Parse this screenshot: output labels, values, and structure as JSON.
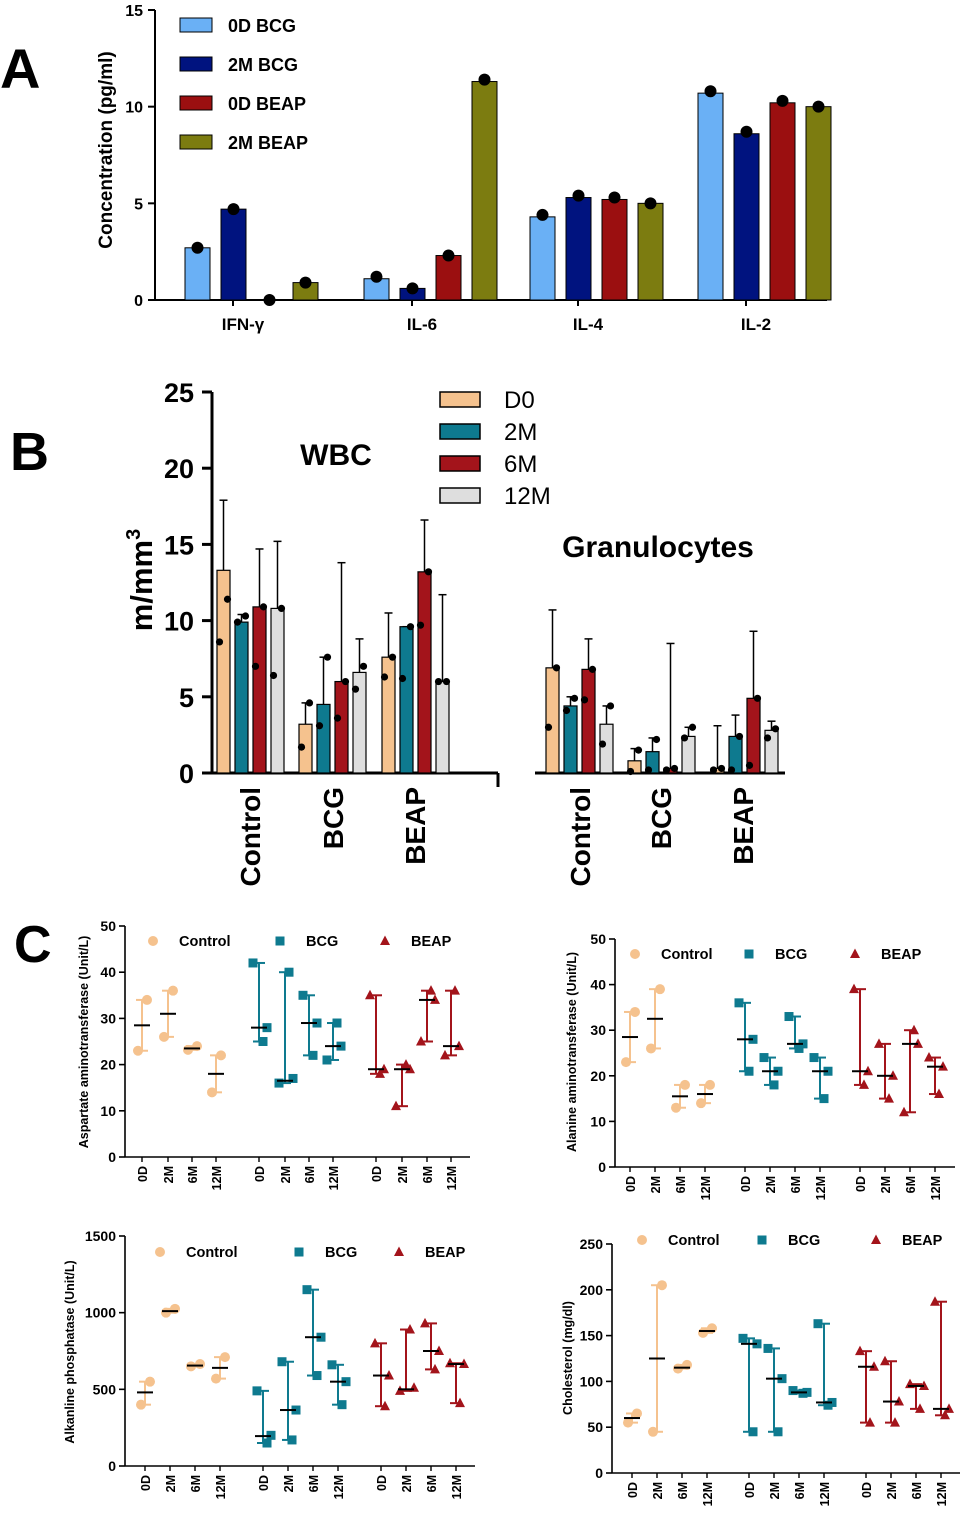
{
  "colors": {
    "a": [
      "#6ab0f5",
      "#00137f",
      "#9b0f10",
      "#7c7c10"
    ],
    "b": [
      "#f5c28e",
      "#0e7a8f",
      "#a3141b",
      "#dedede"
    ],
    "c": {
      "control": "#f5c28e",
      "bcg": "#0e7a8f",
      "beap": "#a3141b"
    }
  },
  "chart_data": [
    {
      "panel": "A",
      "type": "bar",
      "ylabel": "Concentration (pg/ml)",
      "ylim": [
        0,
        15
      ],
      "yticks": [
        "0",
        "5",
        "10",
        "15"
      ],
      "categories": [
        "IFN-γ",
        "IL-6",
        "IL-4",
        "IL-2"
      ],
      "series": [
        {
          "name": "0D BCG",
          "values": [
            2.7,
            1.1,
            4.3,
            10.7
          ],
          "points": [
            2.7,
            1.2,
            4.4,
            10.8
          ]
        },
        {
          "name": "2M BCG",
          "values": [
            4.7,
            0.6,
            5.3,
            8.6
          ],
          "points": [
            4.7,
            0.6,
            5.4,
            8.7
          ]
        },
        {
          "name": "0D BEAP",
          "values": [
            0,
            2.3,
            5.2,
            10.2
          ],
          "points": [
            0,
            2.3,
            5.3,
            10.3
          ]
        },
        {
          "name": "2M BEAP",
          "values": [
            0.9,
            11.3,
            5.0,
            10.0
          ],
          "points": [
            0.9,
            11.4,
            5.0,
            10.0
          ]
        }
      ]
    },
    {
      "panel": "B",
      "type": "bar",
      "ylabel": "m/mm",
      "ylabel_sup": "3",
      "ylim": [
        0,
        25
      ],
      "yticks": [
        "0",
        "5",
        "10",
        "15",
        "20",
        "25"
      ],
      "titles": [
        "WBC",
        "Granulocytes"
      ],
      "legend": [
        "D0",
        "2M",
        "6M",
        "12M"
      ],
      "groups": [
        {
          "name": "Control",
          "bars": [
            {
              "mean": 13.3,
              "upper": 17.9,
              "points": [
                8.6,
                11.4
              ]
            },
            {
              "mean": 9.9,
              "upper": 10.4,
              "points": [
                9.9,
                10.3
              ]
            },
            {
              "mean": 10.9,
              "upper": 14.7,
              "points": [
                7.0,
                10.9
              ]
            },
            {
              "mean": 10.8,
              "upper": 15.2,
              "points": [
                6.4,
                10.8
              ]
            }
          ]
        },
        {
          "name": "BCG",
          "bars": [
            {
              "mean": 3.2,
              "upper": 4.6,
              "points": [
                1.7,
                4.6
              ]
            },
            {
              "mean": 4.5,
              "upper": 7.6,
              "points": [
                3.1,
                7.6
              ]
            },
            {
              "mean": 6.0,
              "upper": 13.8,
              "points": [
                3.6,
                6.0
              ]
            },
            {
              "mean": 6.6,
              "upper": 8.8,
              "points": [
                5.5,
                7.0
              ]
            }
          ]
        },
        {
          "name": "BEAP",
          "bars": [
            {
              "mean": 7.6,
              "upper": 10.5,
              "points": [
                6.3,
                7.6
              ]
            },
            {
              "mean": 9.6,
              "upper": 9.6,
              "points": [
                6.2,
                9.6
              ]
            },
            {
              "mean": 13.2,
              "upper": 16.6,
              "points": [
                9.7,
                13.2
              ]
            },
            {
              "mean": 6.0,
              "upper": 11.7,
              "points": [
                6.0,
                6.0
              ]
            }
          ]
        },
        {
          "name": "Control",
          "bars": [
            {
              "mean": 6.9,
              "upper": 10.7,
              "points": [
                3.0,
                6.9
              ]
            },
            {
              "mean": 4.4,
              "upper": 5.0,
              "points": [
                4.1,
                4.9
              ]
            },
            {
              "mean": 6.8,
              "upper": 8.8,
              "points": [
                4.8,
                6.8
              ]
            },
            {
              "mean": 3.2,
              "upper": 4.4,
              "points": [
                1.9,
                4.4
              ]
            }
          ]
        },
        {
          "name": "BCG",
          "bars": [
            {
              "mean": 0.8,
              "upper": 1.6,
              "points": [
                0.1,
                1.5
              ]
            },
            {
              "mean": 1.4,
              "upper": 2.3,
              "points": [
                0.2,
                2.2
              ]
            },
            {
              "mean": 0.3,
              "upper": 8.5,
              "points": [
                0.2,
                0.3
              ]
            },
            {
              "mean": 2.4,
              "upper": 3.0,
              "points": [
                2.3,
                3.0
              ]
            }
          ]
        },
        {
          "name": "BEAP",
          "bars": [
            {
              "mean": 0.3,
              "upper": 3.1,
              "points": [
                0.2,
                0.3
              ]
            },
            {
              "mean": 2.4,
              "upper": 3.8,
              "points": [
                0.2,
                2.4
              ]
            },
            {
              "mean": 4.9,
              "upper": 9.3,
              "points": [
                0.5,
                4.9
              ]
            },
            {
              "mean": 2.8,
              "upper": 3.4,
              "points": [
                2.3,
                2.9
              ]
            }
          ]
        }
      ]
    },
    {
      "panel": "C1",
      "type": "scatter",
      "ylabel": "Aspartate aminotransferase (Unit/L)",
      "ylim": [
        0,
        50
      ],
      "yticks": [
        "0",
        "10",
        "20",
        "30",
        "40",
        "50"
      ],
      "xticks": [
        "0D",
        "2M",
        "6M",
        "12M",
        "0D",
        "2M",
        "6M",
        "12M",
        "0D",
        "2M",
        "6M",
        "12M"
      ],
      "legend": [
        "Control",
        "BCG",
        "BEAP"
      ],
      "groups": [
        {
          "mean": 28.5,
          "points": [
            23,
            34
          ]
        },
        {
          "mean": 31,
          "points": [
            26,
            36
          ]
        },
        {
          "mean": 23.5,
          "points": [
            23.2,
            24
          ]
        },
        {
          "mean": 18,
          "points": [
            14,
            22
          ]
        },
        {
          "mean": 28,
          "points": [
            42,
            25,
            28
          ]
        },
        {
          "mean": 16.5,
          "points": [
            16,
            40,
            17
          ]
        },
        {
          "mean": 29,
          "points": [
            35,
            22,
            29
          ]
        },
        {
          "mean": 24,
          "points": [
            21,
            29,
            24
          ]
        },
        {
          "mean": 19,
          "points": [
            35,
            18,
            19
          ]
        },
        {
          "mean": 19,
          "points": [
            11,
            20,
            19
          ]
        },
        {
          "mean": 34,
          "points": [
            25,
            36,
            34
          ]
        },
        {
          "mean": 24,
          "points": [
            22,
            36,
            24
          ]
        }
      ]
    },
    {
      "panel": "C2",
      "type": "scatter",
      "ylabel": "Alanine aminotransferase (Unit/L)",
      "ylim": [
        0,
        50
      ],
      "yticks": [
        "0",
        "10",
        "20",
        "30",
        "40",
        "50"
      ],
      "xticks": [
        "0D",
        "2M",
        "6M",
        "12M",
        "0D",
        "2M",
        "6M",
        "12M",
        "0D",
        "2M",
        "6M",
        "12M"
      ],
      "legend": [
        "Control",
        "BCG",
        "BEAP"
      ],
      "groups": [
        {
          "mean": 28.5,
          "points": [
            23,
            34
          ]
        },
        {
          "mean": 32.5,
          "points": [
            26,
            39
          ]
        },
        {
          "mean": 15.5,
          "points": [
            13,
            18
          ]
        },
        {
          "mean": 16,
          "points": [
            14,
            18
          ]
        },
        {
          "mean": 28,
          "points": [
            36,
            21,
            28
          ]
        },
        {
          "mean": 21,
          "points": [
            24,
            18,
            21
          ]
        },
        {
          "mean": 27,
          "points": [
            33,
            26,
            27
          ]
        },
        {
          "mean": 21,
          "points": [
            24,
            15,
            21
          ]
        },
        {
          "mean": 21,
          "points": [
            39,
            18,
            21
          ]
        },
        {
          "mean": 20,
          "points": [
            27,
            15,
            20
          ]
        },
        {
          "mean": 27,
          "points": [
            12,
            30,
            27
          ]
        },
        {
          "mean": 22,
          "points": [
            24,
            16,
            22
          ]
        }
      ]
    },
    {
      "panel": "C3",
      "type": "scatter",
      "ylabel": "Alkanline phosphatase (Unit/L)",
      "ylim": [
        0,
        1500
      ],
      "yticks": [
        "0",
        "500",
        "1000",
        "1500"
      ],
      "xticks": [
        "0D",
        "2M",
        "6M",
        "12M",
        "0D",
        "2M",
        "6M",
        "12M",
        "0D",
        "2M",
        "6M",
        "12M"
      ],
      "legend": [
        "Control",
        "BCG",
        "BEAP"
      ],
      "groups": [
        {
          "mean": 480,
          "points": [
            400,
            550
          ]
        },
        {
          "mean": 1010,
          "points": [
            1000,
            1025
          ]
        },
        {
          "mean": 655,
          "points": [
            650,
            665
          ]
        },
        {
          "mean": 640,
          "points": [
            570,
            710
          ]
        },
        {
          "mean": 195,
          "points": [
            490,
            150,
            200
          ]
        },
        {
          "mean": 365,
          "points": [
            680,
            170,
            365
          ]
        },
        {
          "mean": 840,
          "points": [
            1150,
            590,
            840
          ]
        },
        {
          "mean": 550,
          "points": [
            660,
            400,
            550
          ]
        },
        {
          "mean": 590,
          "points": [
            800,
            390,
            590
          ]
        },
        {
          "mean": 500,
          "points": [
            490,
            890,
            510
          ]
        },
        {
          "mean": 750,
          "points": [
            930,
            630,
            750
          ]
        },
        {
          "mean": 665,
          "points": [
            670,
            410,
            665
          ]
        }
      ]
    },
    {
      "panel": "C4",
      "type": "scatter",
      "ylabel": "Cholesterol (mg/dl)",
      "ylim": [
        0,
        250
      ],
      "yticks": [
        "0",
        "50",
        "100",
        "150",
        "200",
        "250"
      ],
      "xticks": [
        "0D",
        "2M",
        "6M",
        "12M",
        "0D",
        "2M",
        "6M",
        "12M",
        "0D",
        "2M",
        "6M",
        "12M"
      ],
      "legend": [
        "Control",
        "BCG",
        "BEAP"
      ],
      "groups": [
        {
          "mean": 60,
          "points": [
            55,
            65
          ]
        },
        {
          "mean": 125,
          "points": [
            45,
            205
          ]
        },
        {
          "mean": 115,
          "points": [
            114,
            118
          ]
        },
        {
          "mean": 155,
          "points": [
            153,
            158
          ]
        },
        {
          "mean": 141,
          "points": [
            147,
            45,
            141
          ]
        },
        {
          "mean": 103,
          "points": [
            136,
            45,
            103
          ]
        },
        {
          "mean": 88,
          "points": [
            90,
            87,
            88
          ]
        },
        {
          "mean": 77,
          "points": [
            163,
            74,
            77
          ]
        },
        {
          "mean": 116,
          "points": [
            133,
            55,
            116
          ]
        },
        {
          "mean": 78,
          "points": [
            122,
            55,
            78
          ]
        },
        {
          "mean": 95,
          "points": [
            97,
            70,
            95
          ]
        },
        {
          "mean": 70,
          "points": [
            187,
            63,
            70
          ]
        }
      ]
    }
  ]
}
